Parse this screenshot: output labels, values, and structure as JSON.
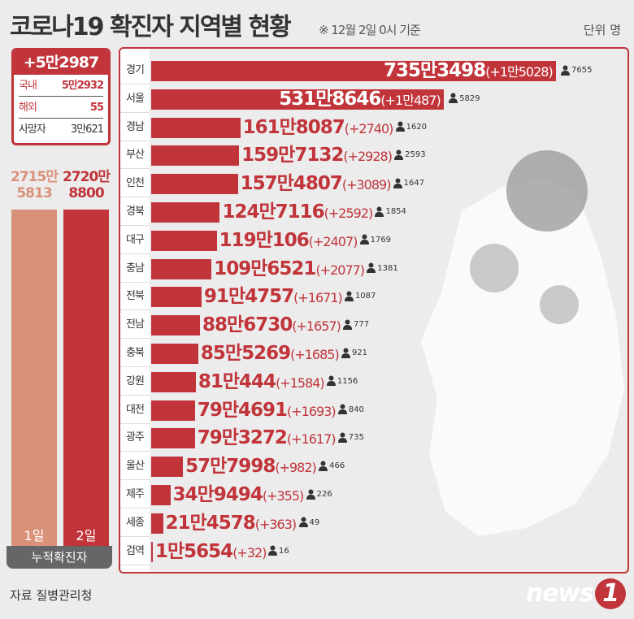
{
  "header": {
    "title": "코로나19 확진자 지역별 현황",
    "subtitle": "※ 12월 2일 0시 기준",
    "unit": "단위 명"
  },
  "summary": {
    "new_total": "+5만2987",
    "rows": [
      {
        "label": "국내",
        "value": "5만2932"
      },
      {
        "label": "해외",
        "value": "55"
      },
      {
        "label": "사망자",
        "value": "3만621"
      }
    ]
  },
  "cumulative": {
    "label": "누적확진자",
    "days": [
      {
        "day": "1일",
        "value_line1": "2715만",
        "value_line2": "5813",
        "value": 27155813,
        "color": "#d9917a"
      },
      {
        "day": "2일",
        "value_line1": "2720만",
        "value_line2": "8800",
        "value": 27208800,
        "color": "#c0343a"
      }
    ]
  },
  "colors": {
    "accent": "#c0343a",
    "bar": "#c0343a",
    "text": "#333333"
  },
  "chart_data": {
    "type": "bar",
    "orientation": "horizontal",
    "title": "코로나19 확진자 지역별 현황",
    "unit": "명",
    "categories": [
      "경기",
      "서울",
      "경남",
      "부산",
      "인천",
      "경북",
      "대구",
      "충남",
      "전북",
      "전남",
      "충북",
      "강원",
      "대전",
      "광주",
      "울산",
      "제주",
      "세종",
      "검역"
    ],
    "series": [
      {
        "values": [
          7353498,
          5318646,
          1618087,
          1597132,
          1574807,
          1247116,
          1190106,
          1096521,
          914757,
          886730,
          855269,
          810444,
          794691,
          793272,
          577998,
          349494,
          214578,
          15654
        ]
      }
    ],
    "total_labels": [
      "735만3498",
      "531만8646",
      "161만8087",
      "159만7132",
      "157만4807",
      "124만7116",
      "119만106",
      "109만6521",
      "91만4757",
      "88만6730",
      "85만5269",
      "81만444",
      "79만4691",
      "79만3272",
      "57만7998",
      "34만9494",
      "21만4578",
      "1만5654"
    ],
    "new_labels": [
      "(+1만5028)",
      "(+1만487)",
      "(+2740)",
      "(+2928)",
      "(+3089)",
      "(+2592)",
      "(+2407)",
      "(+2077)",
      "(+1671)",
      "(+1657)",
      "(+1685)",
      "(+1584)",
      "(+1693)",
      "(+1617)",
      "(+982)",
      "(+355)",
      "(+363)",
      "(+32)"
    ],
    "deaths": [
      "7655",
      "5829",
      "1620",
      "2593",
      "1647",
      "1854",
      "1769",
      "1381",
      "1087",
      "777",
      "921",
      "1156",
      "840",
      "735",
      "466",
      "226",
      "49",
      "16"
    ],
    "icon": "person-icon"
  },
  "footer": {
    "source": "자료 질병관리청",
    "logo": "news",
    "logo_mark": "1"
  }
}
